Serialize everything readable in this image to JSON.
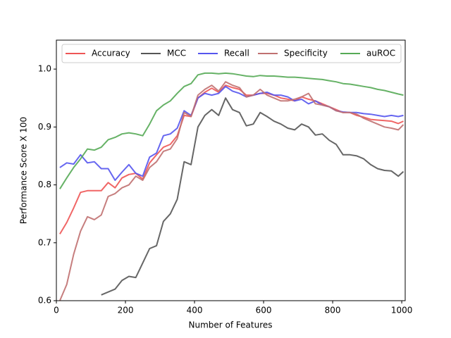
{
  "chart_data": {
    "type": "line",
    "xlabel": "Number of Features",
    "ylabel": "Performance Score X 100",
    "x": [
      10,
      30,
      50,
      70,
      90,
      110,
      130,
      150,
      170,
      190,
      210,
      230,
      250,
      270,
      290,
      310,
      330,
      350,
      370,
      390,
      410,
      430,
      450,
      470,
      490,
      510,
      530,
      550,
      570,
      590,
      610,
      630,
      650,
      670,
      690,
      710,
      730,
      750,
      770,
      790,
      810,
      830,
      850,
      870,
      890,
      910,
      930,
      950,
      970,
      990,
      1005
    ],
    "series": [
      {
        "name": "Accuracy",
        "color": "#ee5555",
        "values": [
          0.715,
          0.735,
          0.76,
          0.787,
          0.79,
          0.79,
          0.79,
          0.804,
          0.795,
          0.812,
          0.818,
          0.82,
          0.81,
          0.838,
          0.852,
          0.865,
          0.87,
          0.885,
          0.92,
          0.918,
          0.95,
          0.96,
          0.967,
          0.96,
          0.972,
          0.968,
          0.965,
          0.955,
          0.955,
          0.958,
          0.958,
          0.955,
          0.95,
          0.948,
          0.945,
          0.952,
          0.948,
          0.945,
          0.94,
          0.935,
          0.93,
          0.925,
          0.925,
          0.92,
          0.917,
          0.913,
          0.912,
          0.911,
          0.91,
          0.906,
          0.91
        ]
      },
      {
        "name": "MCC",
        "color": "#555555",
        "values": [
          null,
          null,
          null,
          null,
          null,
          null,
          0.61,
          0.615,
          0.62,
          0.635,
          0.642,
          0.64,
          0.665,
          0.69,
          0.695,
          0.737,
          0.75,
          0.775,
          0.84,
          0.835,
          0.9,
          0.92,
          0.93,
          0.92,
          0.95,
          0.93,
          0.925,
          0.902,
          0.905,
          0.925,
          0.918,
          0.91,
          0.905,
          0.898,
          0.895,
          0.905,
          0.9,
          0.886,
          0.888,
          0.877,
          0.87,
          0.852,
          0.852,
          0.85,
          0.845,
          0.835,
          0.828,
          0.825,
          0.824,
          0.815,
          0.823
        ]
      },
      {
        "name": "Recall",
        "color": "#5555ee",
        "values": [
          0.83,
          0.838,
          0.836,
          0.852,
          0.838,
          0.84,
          0.828,
          0.828,
          0.808,
          0.822,
          0.835,
          0.82,
          0.815,
          0.848,
          0.855,
          0.885,
          0.888,
          0.898,
          0.928,
          0.92,
          0.95,
          0.958,
          0.955,
          0.958,
          0.97,
          0.962,
          0.958,
          0.952,
          0.955,
          0.958,
          0.96,
          0.955,
          0.955,
          0.952,
          0.945,
          0.948,
          0.94,
          0.945,
          0.938,
          0.935,
          0.928,
          0.926,
          0.925,
          0.925,
          0.923,
          0.922,
          0.92,
          0.918,
          0.92,
          0.918,
          0.92
        ]
      },
      {
        "name": "Specificity",
        "color": "#c07070",
        "values": [
          0.6,
          0.628,
          0.68,
          0.72,
          0.745,
          0.74,
          0.748,
          0.78,
          0.785,
          0.795,
          0.8,
          0.815,
          0.808,
          0.83,
          0.84,
          0.858,
          0.862,
          0.88,
          0.925,
          0.918,
          0.955,
          0.965,
          0.972,
          0.962,
          0.978,
          0.972,
          0.968,
          0.952,
          0.955,
          0.965,
          0.955,
          0.95,
          0.945,
          0.945,
          0.948,
          0.952,
          0.958,
          0.94,
          0.938,
          0.935,
          0.928,
          0.925,
          0.925,
          0.922,
          0.915,
          0.91,
          0.905,
          0.9,
          0.898,
          0.895,
          0.904
        ]
      },
      {
        "name": "auROC",
        "color": "#55aa55",
        "values": [
          0.793,
          0.812,
          0.83,
          0.845,
          0.862,
          0.86,
          0.865,
          0.878,
          0.882,
          0.888,
          0.89,
          0.888,
          0.885,
          0.905,
          0.928,
          0.938,
          0.945,
          0.958,
          0.97,
          0.975,
          0.99,
          0.993,
          0.993,
          0.992,
          0.993,
          0.992,
          0.99,
          0.988,
          0.987,
          0.989,
          0.988,
          0.988,
          0.987,
          0.986,
          0.986,
          0.985,
          0.984,
          0.983,
          0.982,
          0.98,
          0.978,
          0.975,
          0.974,
          0.972,
          0.97,
          0.968,
          0.965,
          0.963,
          0.96,
          0.957,
          0.955
        ]
      }
    ],
    "xlim": [
      0,
      1010
    ],
    "ylim": [
      0.6,
      1.05
    ],
    "xticks": [
      0,
      200,
      400,
      600,
      800,
      1000
    ],
    "yticks": [
      0.6,
      0.7,
      0.8,
      0.9,
      {
        "value": 1,
        "label": "1.0"
      }
    ],
    "legend": "upper center"
  }
}
